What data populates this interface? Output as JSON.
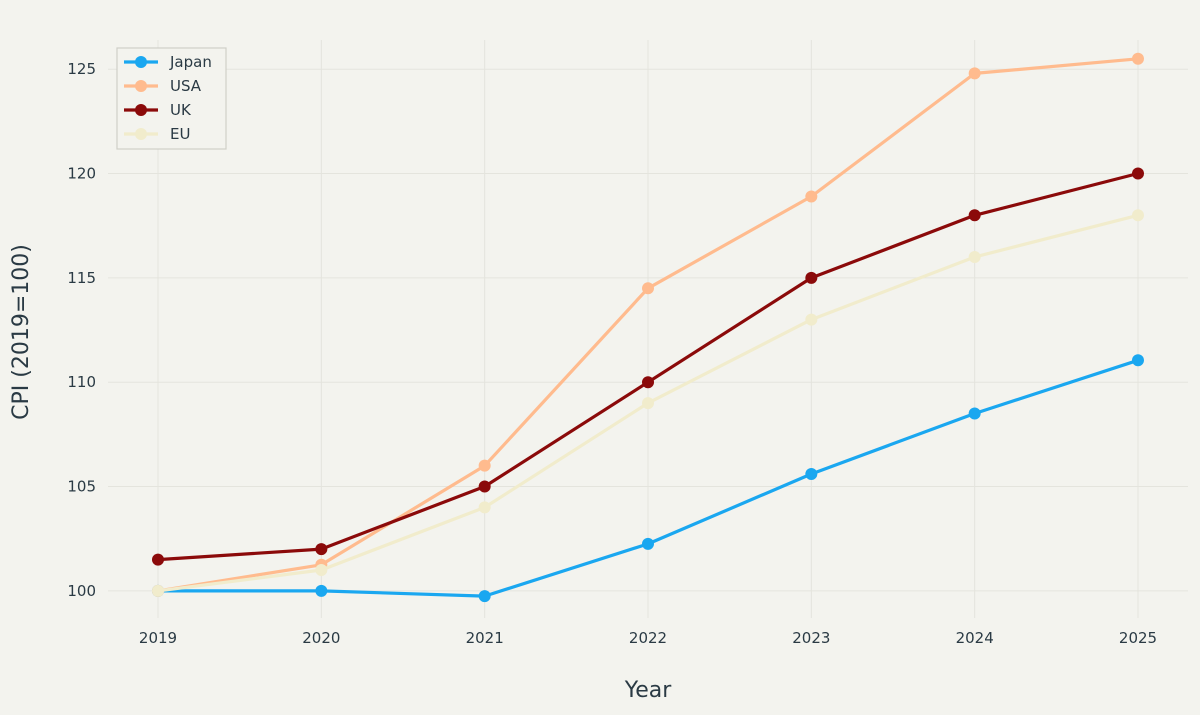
{
  "chart_data": {
    "type": "line",
    "title": "",
    "xlabel": "Year",
    "ylabel": "CPI (2019=100)",
    "x": [
      "2019",
      "2020",
      "2021",
      "2022",
      "2023",
      "2024",
      "2025"
    ],
    "x_ticks": [
      "2019",
      "2020",
      "2021",
      "2022",
      "2023",
      "2024",
      "2025"
    ],
    "y_ticks": [
      100,
      105,
      110,
      115,
      120,
      125
    ],
    "ylim": [
      98.7,
      126.4
    ],
    "grid": true,
    "legend_position": "top-left",
    "series": [
      {
        "name": "Japan",
        "color": "#1aa7f0",
        "values": [
          100.0,
          100.0,
          99.75,
          102.25,
          105.6,
          108.5,
          111.05
        ]
      },
      {
        "name": "USA",
        "color": "#ffbb8e",
        "values": [
          100.0,
          101.25,
          106.0,
          114.5,
          118.9,
          124.8,
          125.5
        ]
      },
      {
        "name": "UK",
        "color": "#8b0a0a",
        "values": [
          101.5,
          102.0,
          105.0,
          110.0,
          115.0,
          118.0,
          120.0
        ]
      },
      {
        "name": "EU",
        "color": "#f1eccc",
        "values": [
          100.0,
          101.0,
          104.0,
          109.0,
          113.0,
          116.0,
          118.0
        ]
      }
    ]
  }
}
